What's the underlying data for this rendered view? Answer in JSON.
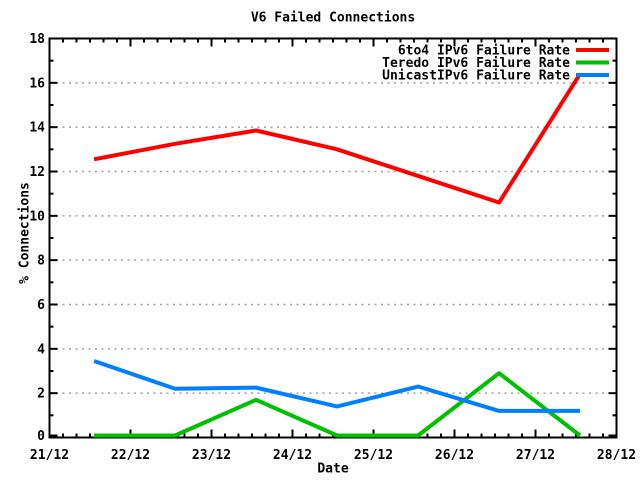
{
  "chart_data": {
    "type": "line",
    "title": "V6 Failed Connections",
    "xlabel": "Date",
    "ylabel": "% Connections",
    "xlim": [
      21,
      28
    ],
    "ylim": [
      0,
      18
    ],
    "x_tick_labels": [
      "21/12",
      "22/12",
      "23/12",
      "24/12",
      "25/12",
      "26/12",
      "27/12",
      "28/12"
    ],
    "x_tick_values": [
      21,
      22,
      23,
      24,
      25,
      26,
      27,
      28
    ],
    "y_tick_values": [
      0,
      2,
      4,
      6,
      8,
      10,
      12,
      14,
      16,
      18
    ],
    "x_minor_ticks_per_interval": 5,
    "y_minor_ticks_per_interval": 1,
    "grid": "horizontal dotted gridlines at major y ticks",
    "legend_position": "top-right-inside",
    "x": [
      21.55,
      22.55,
      23.55,
      24.55,
      25.55,
      26.55,
      27.55
    ],
    "series": [
      {
        "key": "6to4",
        "name": "6to4 IPv6 Failure Rate",
        "color": "#ff0000",
        "values": [
          12.55,
          13.25,
          13.85,
          13.0,
          11.8,
          10.6,
          16.4
        ]
      },
      {
        "key": "teredo",
        "name": "Teredo IPv6 Failure Rate",
        "color": "#00c000",
        "values": [
          0,
          0,
          1.7,
          0,
          0,
          2.9,
          0
        ]
      },
      {
        "key": "unicast",
        "name": "UnicastIPv6 Failure Rate",
        "color": "#0080ff",
        "values": [
          3.45,
          2.2,
          2.25,
          1.4,
          2.3,
          1.2,
          1.2
        ]
      }
    ],
    "colors": {
      "background": "#ffffff",
      "axis": "#000000",
      "grid": "#a0a0a0",
      "text": "#000000"
    }
  }
}
